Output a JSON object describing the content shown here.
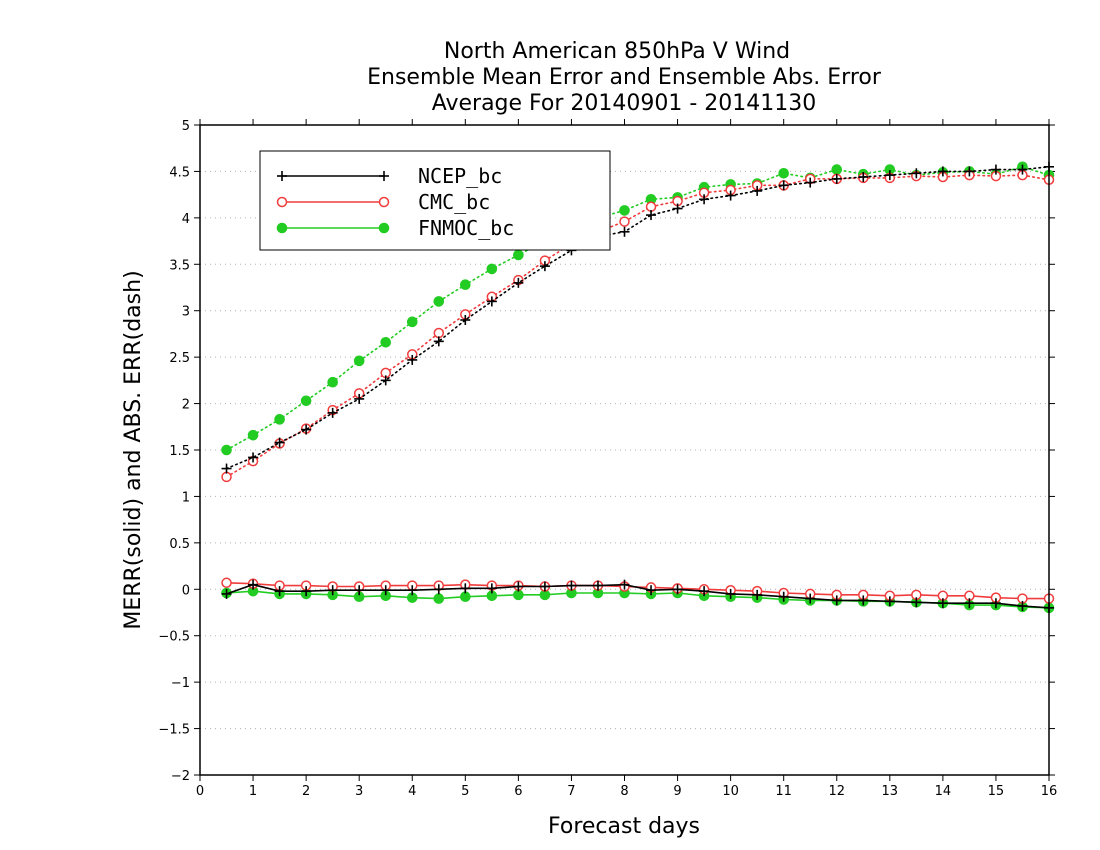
{
  "chart_data": {
    "type": "line",
    "title": [
      "North American 850hPa V Wind",
      "Ensemble Mean Error and Ensemble Abs. Error",
      "Average For 20140901 - 20141130"
    ],
    "xlabel": "Forecast days",
    "ylabel": "MERR(solid) and ABS. ERR(dash)",
    "xlim": [
      0,
      16
    ],
    "ylim": [
      -2,
      5
    ],
    "xticks": [
      0,
      1,
      2,
      3,
      4,
      5,
      6,
      7,
      8,
      9,
      10,
      11,
      12,
      13,
      14,
      15,
      16
    ],
    "yticks": [
      -2,
      -1.5,
      -1,
      -0.5,
      0,
      0.5,
      1,
      1.5,
      2,
      2.5,
      3,
      3.5,
      4,
      4.5,
      5
    ],
    "grid": "horizontal-dotted",
    "legend_placement": "top-left",
    "x": [
      0.5,
      1,
      1.5,
      2,
      2.5,
      3,
      3.5,
      4,
      4.5,
      5,
      5.5,
      6,
      6.5,
      7,
      7.5,
      8,
      8.5,
      9,
      9.5,
      10,
      10.5,
      11,
      11.5,
      12,
      12.5,
      13,
      13.5,
      14,
      14.5,
      15,
      15.5,
      16
    ],
    "series": [
      {
        "name": "NCEP_bc",
        "color": "#000000",
        "marker": "plus",
        "merr": [
          -0.05,
          0.05,
          -0.02,
          -0.02,
          -0.01,
          -0.01,
          -0.01,
          -0.01,
          0.0,
          0.01,
          0.01,
          0.03,
          0.03,
          0.04,
          0.04,
          0.05,
          -0.01,
          0.0,
          -0.02,
          -0.05,
          -0.06,
          -0.08,
          -0.1,
          -0.12,
          -0.12,
          -0.13,
          -0.14,
          -0.15,
          -0.15,
          -0.15,
          -0.18,
          -0.2
        ],
        "abs_err": [
          1.3,
          1.42,
          1.58,
          1.72,
          1.9,
          2.05,
          2.25,
          2.47,
          2.67,
          2.9,
          3.1,
          3.3,
          3.48,
          3.65,
          3.8,
          3.85,
          4.03,
          4.1,
          4.2,
          4.24,
          4.29,
          4.35,
          4.38,
          4.42,
          4.44,
          4.46,
          4.48,
          4.5,
          4.5,
          4.52,
          4.52,
          4.55
        ]
      },
      {
        "name": "CMC_bc",
        "color": "#f03c3c",
        "marker": "open-circle",
        "merr": [
          0.07,
          0.06,
          0.04,
          0.04,
          0.03,
          0.03,
          0.04,
          0.04,
          0.04,
          0.05,
          0.04,
          0.04,
          0.03,
          0.04,
          0.04,
          0.03,
          0.02,
          0.01,
          0.0,
          -0.01,
          -0.02,
          -0.04,
          -0.05,
          -0.06,
          -0.06,
          -0.07,
          -0.06,
          -0.07,
          -0.07,
          -0.09,
          -0.1,
          -0.1
        ],
        "abs_err": [
          1.21,
          1.38,
          1.57,
          1.73,
          1.93,
          2.11,
          2.33,
          2.53,
          2.76,
          2.96,
          3.15,
          3.33,
          3.54,
          3.72,
          3.85,
          3.96,
          4.12,
          4.18,
          4.27,
          4.3,
          4.35,
          4.35,
          4.42,
          4.42,
          4.43,
          4.43,
          4.45,
          4.44,
          4.46,
          4.45,
          4.46,
          4.41
        ]
      },
      {
        "name": "FNMOC_bc",
        "color": "#22cc22",
        "marker": "filled-circle",
        "merr": [
          -0.04,
          -0.02,
          -0.05,
          -0.05,
          -0.06,
          -0.08,
          -0.07,
          -0.09,
          -0.1,
          -0.08,
          -0.07,
          -0.06,
          -0.06,
          -0.04,
          -0.04,
          -0.04,
          -0.05,
          -0.04,
          -0.07,
          -0.08,
          -0.09,
          -0.11,
          -0.12,
          -0.12,
          -0.13,
          -0.13,
          -0.14,
          -0.15,
          -0.17,
          -0.17,
          -0.19,
          -0.2
        ],
        "abs_err": [
          1.5,
          1.66,
          1.83,
          2.03,
          2.23,
          2.46,
          2.66,
          2.88,
          3.1,
          3.28,
          3.45,
          3.6,
          3.75,
          3.88,
          4.0,
          4.08,
          4.2,
          4.22,
          4.33,
          4.36,
          4.37,
          4.48,
          4.43,
          4.52,
          4.47,
          4.52,
          4.46,
          4.49,
          4.5,
          4.47,
          4.55,
          4.46
        ]
      }
    ]
  }
}
